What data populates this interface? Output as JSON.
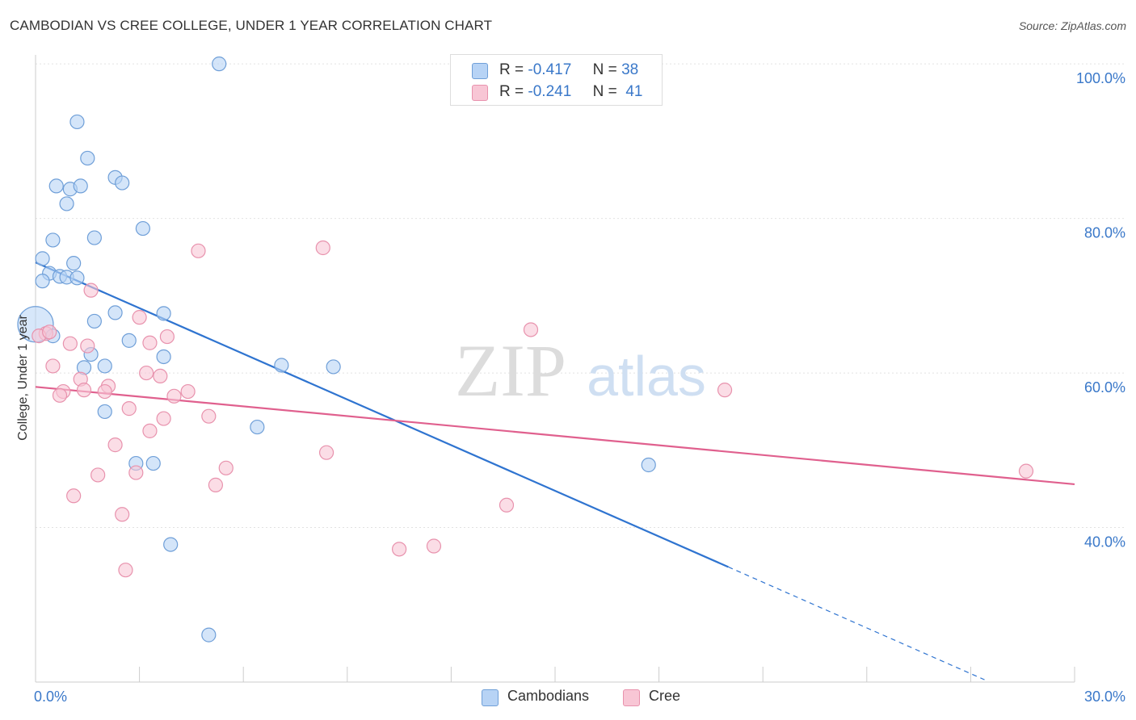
{
  "title": "CAMBODIAN VS CREE COLLEGE, UNDER 1 YEAR CORRELATION CHART",
  "source": "Source: ZipAtlas.com",
  "watermark": {
    "zip": "ZIP",
    "atlas": "atlas"
  },
  "legend": {
    "r_label": "R =",
    "n_label": "N =",
    "cambodians": {
      "r": "-0.417",
      "n": "38"
    },
    "cree": {
      "r": "-0.241",
      "n": "41"
    }
  },
  "colors": {
    "cambodians_fill": "#b7d3f5",
    "cambodians_stroke": "#6f9fd8",
    "cambodians_line": "#2f74d0",
    "cree_fill": "#f8c6d5",
    "cree_stroke": "#e892ad",
    "cree_line": "#e0608e",
    "tick_label": "#3a78c9"
  },
  "chart_data": {
    "type": "scatter",
    "title": "CAMBODIAN VS CREE COLLEGE, UNDER 1 YEAR CORRELATION CHART",
    "xlabel": "",
    "ylabel": "College, Under 1 year",
    "xlim": [
      0,
      30
    ],
    "ylim": [
      20,
      102
    ],
    "x_tick_labels": [
      {
        "value": 0,
        "label": "0.0%"
      },
      {
        "value": 30,
        "label": "30.0%"
      }
    ],
    "y_tick_labels": [
      {
        "value": 100,
        "label": "100.0%"
      },
      {
        "value": 80,
        "label": "80.0%"
      },
      {
        "value": 60,
        "label": "60.0%"
      },
      {
        "value": 40,
        "label": "40.0%"
      }
    ],
    "series": [
      {
        "name": "Cambodians",
        "points": [
          [
            5.3,
            100.0
          ],
          [
            1.2,
            92.5
          ],
          [
            1.5,
            87.8
          ],
          [
            2.3,
            85.3
          ],
          [
            2.5,
            84.6
          ],
          [
            0.6,
            84.2
          ],
          [
            1.0,
            83.8
          ],
          [
            1.3,
            84.2
          ],
          [
            0.9,
            81.9
          ],
          [
            3.1,
            78.7
          ],
          [
            1.7,
            77.5
          ],
          [
            0.5,
            77.2
          ],
          [
            0.2,
            74.8
          ],
          [
            1.1,
            74.2
          ],
          [
            0.4,
            72.9
          ],
          [
            0.7,
            72.5
          ],
          [
            0.9,
            72.4
          ],
          [
            0.2,
            71.9
          ],
          [
            0.0,
            66.3
          ],
          [
            2.3,
            67.8
          ],
          [
            3.7,
            67.7
          ],
          [
            1.7,
            66.7
          ],
          [
            2.7,
            64.2
          ],
          [
            1.6,
            62.4
          ],
          [
            3.7,
            62.1
          ],
          [
            1.4,
            60.7
          ],
          [
            2.0,
            60.9
          ],
          [
            7.1,
            61.0
          ],
          [
            8.6,
            60.8
          ],
          [
            2.0,
            55.0
          ],
          [
            6.4,
            53.0
          ],
          [
            2.9,
            48.3
          ],
          [
            3.4,
            48.3
          ],
          [
            17.7,
            48.1
          ],
          [
            3.9,
            37.8
          ],
          [
            5.0,
            26.1
          ],
          [
            0.5,
            64.8
          ],
          [
            1.2,
            72.3
          ]
        ]
      },
      {
        "name": "Cree",
        "points": [
          [
            8.3,
            76.2
          ],
          [
            4.7,
            75.8
          ],
          [
            1.6,
            70.7
          ],
          [
            14.3,
            65.6
          ],
          [
            0.3,
            65.1
          ],
          [
            3.0,
            67.2
          ],
          [
            3.8,
            64.7
          ],
          [
            0.1,
            64.8
          ],
          [
            1.0,
            63.8
          ],
          [
            3.3,
            63.9
          ],
          [
            1.5,
            63.5
          ],
          [
            0.5,
            60.9
          ],
          [
            3.2,
            60.0
          ],
          [
            3.6,
            59.6
          ],
          [
            1.3,
            59.2
          ],
          [
            2.1,
            58.3
          ],
          [
            4.4,
            57.6
          ],
          [
            4.0,
            57.0
          ],
          [
            1.4,
            57.8
          ],
          [
            0.8,
            57.6
          ],
          [
            2.0,
            57.6
          ],
          [
            0.7,
            57.1
          ],
          [
            19.9,
            57.8
          ],
          [
            2.7,
            55.4
          ],
          [
            3.7,
            54.1
          ],
          [
            5.0,
            54.4
          ],
          [
            3.3,
            52.5
          ],
          [
            2.3,
            50.7
          ],
          [
            8.4,
            49.7
          ],
          [
            5.5,
            47.7
          ],
          [
            2.9,
            47.1
          ],
          [
            1.8,
            46.8
          ],
          [
            5.2,
            45.5
          ],
          [
            1.1,
            44.1
          ],
          [
            28.6,
            47.3
          ],
          [
            13.6,
            42.9
          ],
          [
            2.5,
            41.7
          ],
          [
            10.5,
            37.2
          ],
          [
            11.5,
            37.6
          ],
          [
            2.6,
            34.5
          ],
          [
            0.4,
            65.3
          ]
        ]
      }
    ],
    "trend_lines": [
      {
        "series": "Cambodians",
        "x0": 0,
        "y0": 74.3,
        "x1": 20.0,
        "y1": 34.9,
        "dashed_to_x": 27.4,
        "dashed_to_y": 20.3
      },
      {
        "series": "Cree",
        "x0": 0,
        "y0": 58.2,
        "x1": 30.0,
        "y1": 45.6
      }
    ],
    "legend_position": "top-center",
    "grid": true
  }
}
